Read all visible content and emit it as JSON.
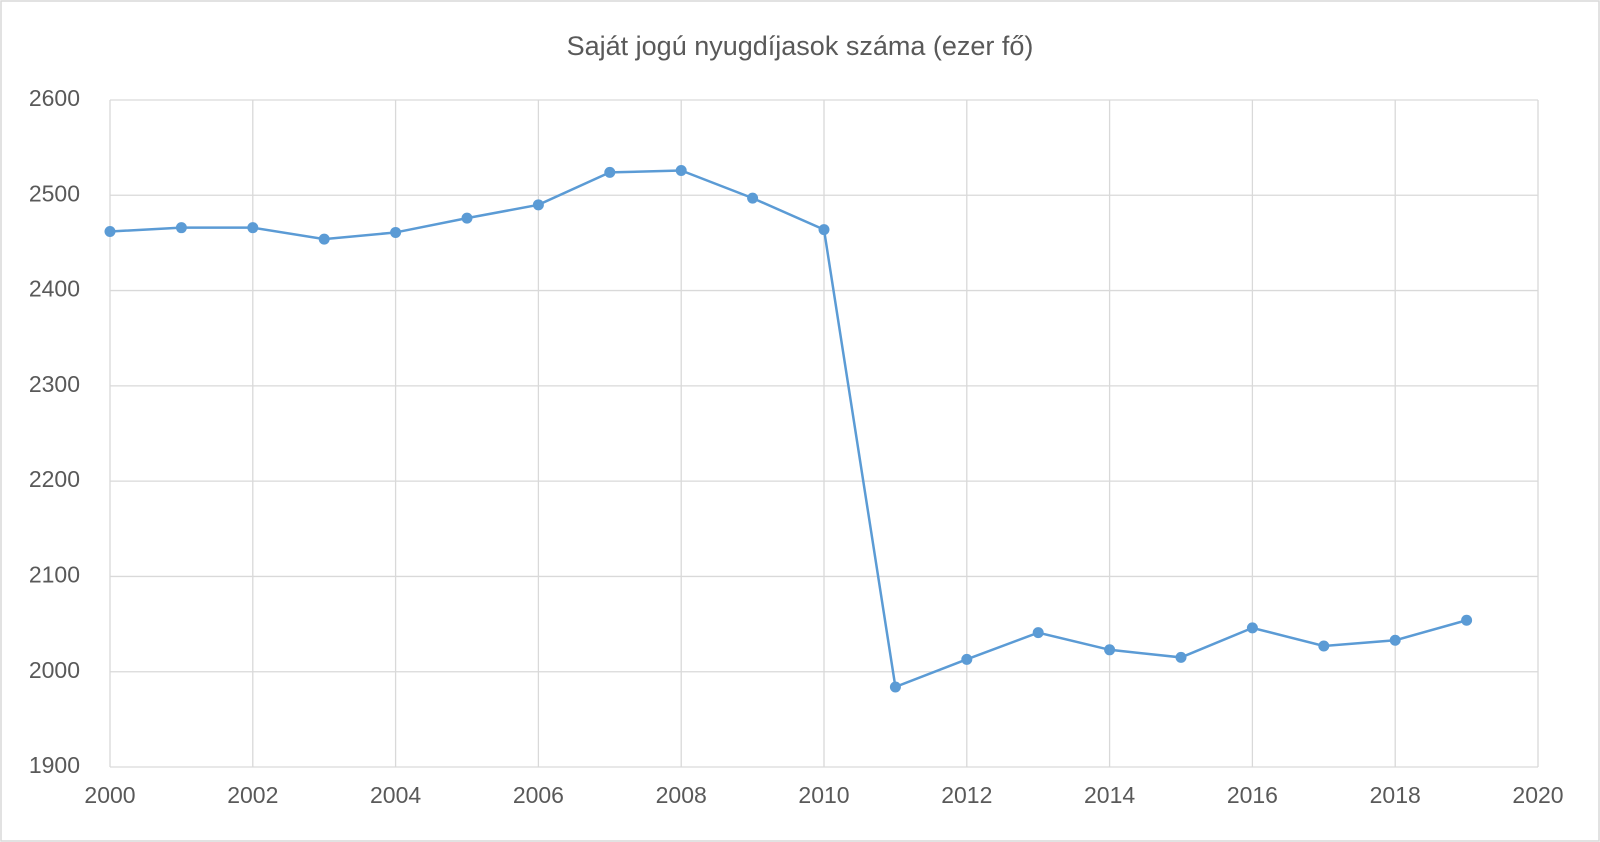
{
  "chart_data": {
    "type": "line",
    "title": "Saját jogú nyugdíjasok száma (ezer fő)",
    "x": [
      2000,
      2001,
      2002,
      2003,
      2004,
      2005,
      2006,
      2007,
      2008,
      2009,
      2010,
      2011,
      2012,
      2013,
      2014,
      2015,
      2016,
      2017,
      2018,
      2019
    ],
    "series": [
      {
        "name": "Saját jogú nyugdíjasok",
        "color": "#5b9bd5",
        "values": [
          2462,
          2466,
          2466,
          2454,
          2461,
          2476,
          2490,
          2524,
          2526,
          2497,
          2464,
          1984,
          2013,
          2041,
          2023,
          2015,
          2046,
          2027,
          2033,
          2054
        ]
      }
    ],
    "xlim": [
      2000,
      2020
    ],
    "xticks": [
      2000,
      2002,
      2004,
      2006,
      2008,
      2010,
      2012,
      2014,
      2016,
      2018,
      2020
    ],
    "ylim": [
      1900,
      2600
    ],
    "yticks": [
      1900,
      2000,
      2100,
      2200,
      2300,
      2400,
      2500,
      2600
    ],
    "grid": true
  }
}
